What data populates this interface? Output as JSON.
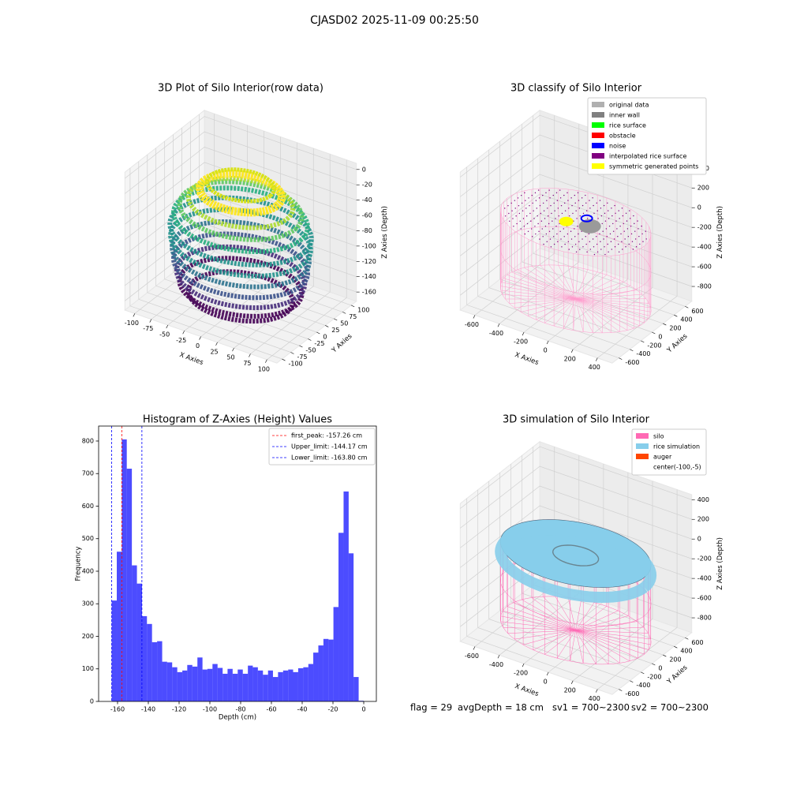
{
  "title": "CJASD02 2025-11-09 00:25:50",
  "chart_data": [
    {
      "type": "scatter3d",
      "title": "3D Plot of Silo Interior(row data)",
      "xlabel": "X Axies",
      "ylabel": "Y Axies",
      "zlabel": "Z Axies (Depth)",
      "xlim": [
        -115,
        115
      ],
      "ylim": [
        -115,
        115
      ],
      "zlim": [
        -172,
        8
      ],
      "xticks": [
        -100,
        -75,
        -50,
        -25,
        0,
        25,
        50,
        75,
        100
      ],
      "yticks": [
        -100,
        -75,
        -50,
        -25,
        0,
        25,
        50,
        75,
        100
      ],
      "zticks": [
        0,
        -20,
        -40,
        -60,
        -80,
        -100,
        -120,
        -140,
        -160
      ],
      "grid": true,
      "colormap": "viridis"
    },
    {
      "type": "scatter3d",
      "title": "3D classify of Silo Interior",
      "xlabel": "X Axies",
      "ylabel": "Y Axies",
      "zlabel": "Z Axies (Depth)",
      "xlim": [
        -720,
        520
      ],
      "ylim": [
        -720,
        720
      ],
      "zlim": [
        -950,
        450
      ],
      "xticks": [
        -600,
        -400,
        -200,
        0,
        200,
        400
      ],
      "yticks": [
        -600,
        -400,
        -200,
        0,
        200,
        400,
        600
      ],
      "zticks": [
        400,
        200,
        0,
        -200,
        -400,
        -600,
        -800
      ],
      "grid": true,
      "legend": "upper right",
      "series": [
        {
          "name": "original data",
          "color": "#b0b0b0"
        },
        {
          "name": "inner wall",
          "color": "#808080"
        },
        {
          "name": "rice surface",
          "color": "#00ff00"
        },
        {
          "name": "obstacle",
          "color": "#ff0000"
        },
        {
          "name": "noise",
          "color": "#0000ff"
        },
        {
          "name": "interpolated rice surface",
          "color": "#800080"
        },
        {
          "name": "symmetric generated points",
          "color": "#ffff00"
        }
      ]
    },
    {
      "type": "histogram",
      "title": "Histogram of Z-Axies (Height) Values",
      "xlabel": "Depth (cm)",
      "ylabel": "Frequency",
      "xlim": [
        -172.3,
        8.2
      ],
      "ylim": [
        0,
        846
      ],
      "xticks": [
        -160,
        -140,
        -120,
        -100,
        -80,
        -60,
        -40,
        -20,
        0
      ],
      "yticks": [
        0,
        100,
        200,
        300,
        400,
        500,
        600,
        700,
        800
      ],
      "color": "#0000ff",
      "alpha": 0.7,
      "legend": "upper right",
      "bins": [
        -163.8,
        -160.5,
        -157.2,
        -154.0,
        -150.7,
        -147.4,
        -144.1,
        -140.9,
        -137.6,
        -134.3,
        -131.0,
        -127.8,
        -124.5,
        -121.2,
        -117.9,
        -114.7,
        -111.4,
        -108.1,
        -104.8,
        -101.6,
        -98.3,
        -95.0,
        -91.7,
        -88.5,
        -85.2,
        -81.9,
        -78.6,
        -75.3,
        -72.1,
        -68.8,
        -65.5,
        -62.2,
        -59.0,
        -55.7,
        -52.4,
        -49.1,
        -45.9,
        -42.6,
        -39.3,
        -36.0,
        -32.8,
        -29.5,
        -26.2,
        -22.9,
        -19.7,
        -16.4,
        -13.1,
        -9.8,
        -6.6,
        -3.3,
        0
      ],
      "values": [
        310,
        460,
        805,
        715,
        418,
        362,
        262,
        238,
        182,
        185,
        122,
        120,
        105,
        90,
        95,
        112,
        107,
        135,
        98,
        100,
        115,
        103,
        85,
        100,
        85,
        98,
        85,
        110,
        105,
        95,
        82,
        95,
        75,
        90,
        95,
        98,
        90,
        102,
        105,
        115,
        150,
        172,
        192,
        190,
        290,
        518,
        645,
        455,
        75,
        2
      ],
      "vlines": [
        {
          "label": "first_peak: -157.26 cm",
          "value": -157.26,
          "color": "#ff0000"
        },
        {
          "label": "Upper_limit: -144.17 cm",
          "value": -144.17,
          "color": "#0000ff"
        },
        {
          "label": "Lower_limit: -163.80 cm",
          "value": -163.8,
          "color": "#0000ff"
        }
      ]
    },
    {
      "type": "surface3d",
      "title": "3D simulation of Silo Interior",
      "xlabel": "X Axies",
      "ylabel": "Y Axies",
      "zlabel": "Z Axies (Depth)",
      "xlim": [
        -720,
        520
      ],
      "ylim": [
        -720,
        720
      ],
      "zlim": [
        -950,
        450
      ],
      "xticks": [
        -600,
        -400,
        -200,
        0,
        200,
        400
      ],
      "yticks": [
        -600,
        -400,
        -200,
        0,
        200,
        400,
        600
      ],
      "zticks": [
        400,
        200,
        0,
        -200,
        -400,
        -600,
        -800
      ],
      "grid": true,
      "legend": "upper right",
      "series": [
        {
          "name": "silo",
          "color": "#ff69b4"
        },
        {
          "name": "rice simulation",
          "color": "#87ceeb"
        },
        {
          "name": "auger",
          "color": "#ff4500"
        },
        {
          "name": "center(-100,-5)",
          "color": "#ffffff"
        }
      ]
    }
  ],
  "footer": [
    "flag = 29",
    "avgDepth = 18 cm",
    "sv1 = 700~2300",
    "sv2 = 700~2300"
  ]
}
